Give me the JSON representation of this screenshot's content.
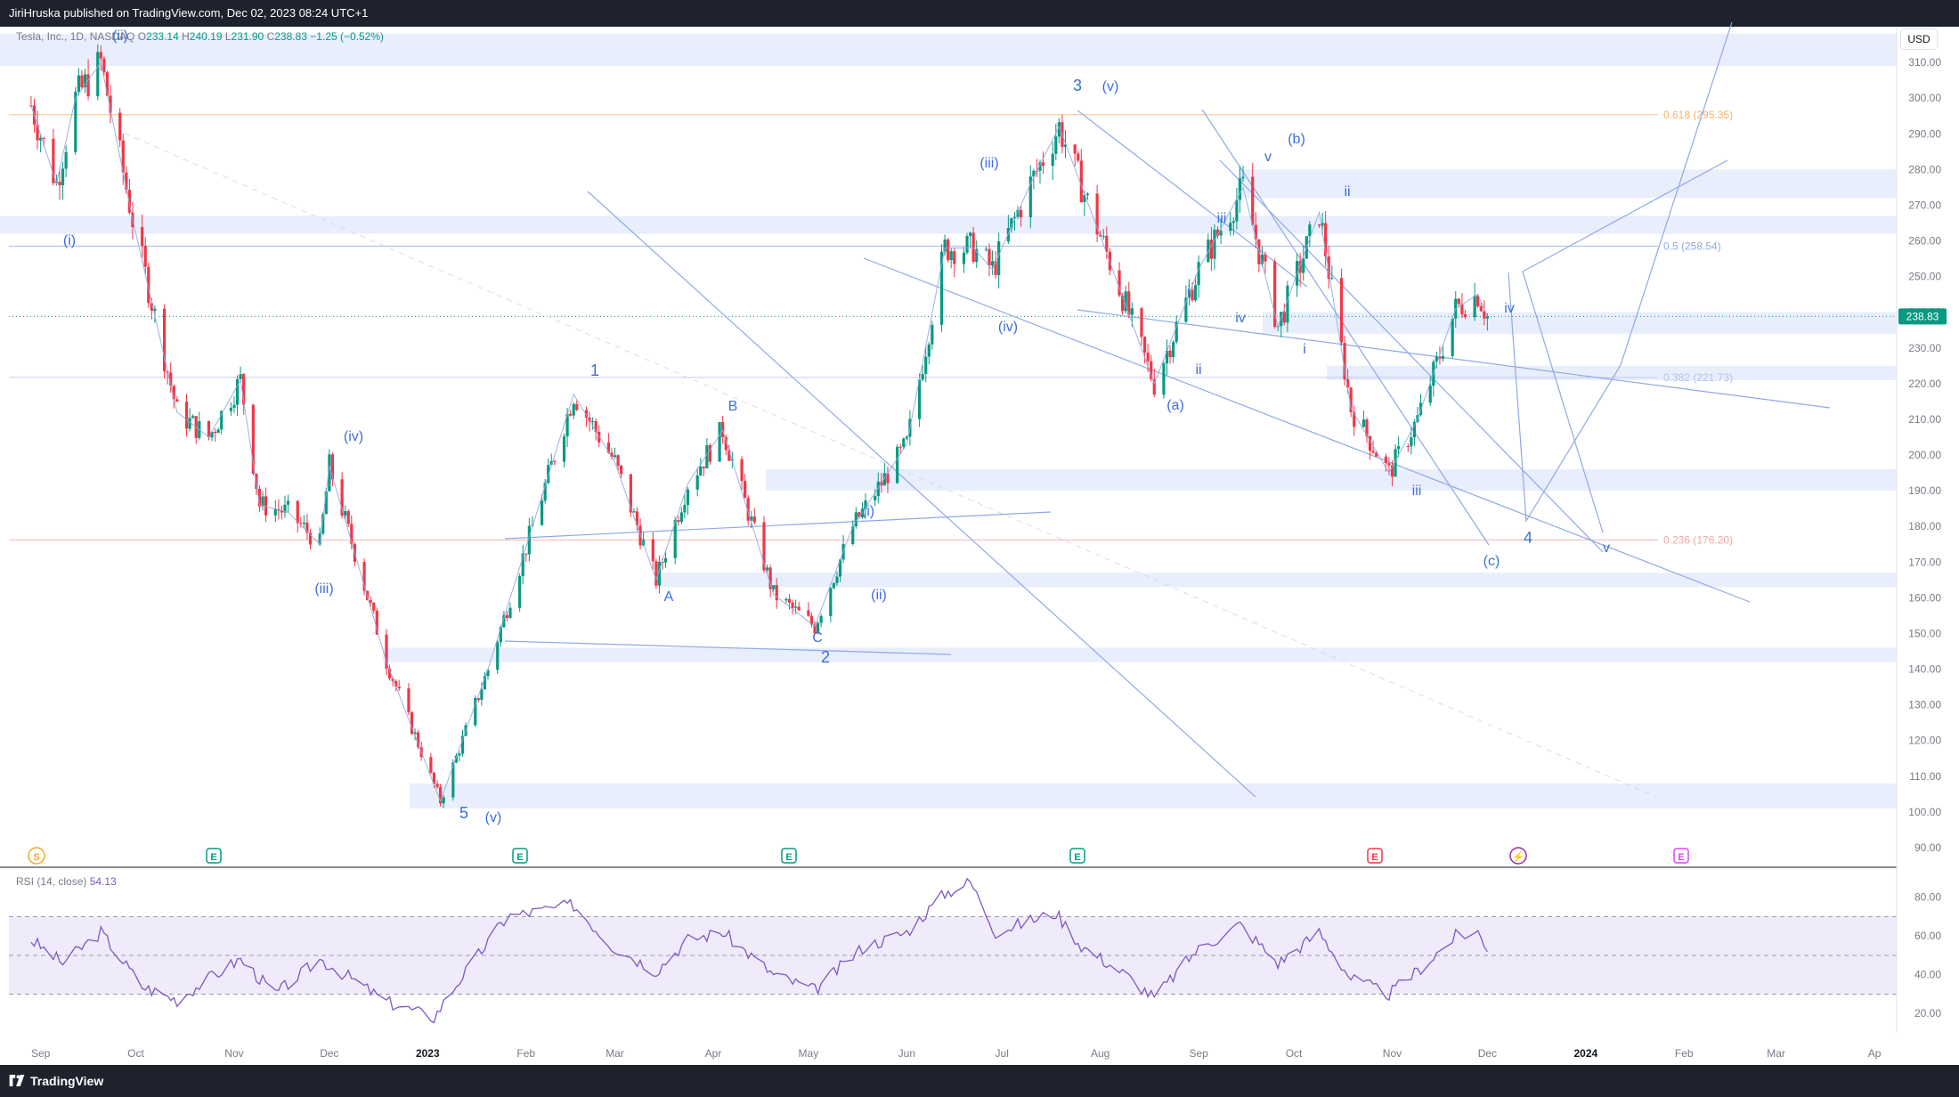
{
  "header": {
    "published": "JiriHruska published on TradingView.com, Dec 02, 2023 08:24 UTC+1"
  },
  "legend": {
    "symbol": "Tesla, Inc., 1D, NASDAQ",
    "open_label": "O",
    "open": "233.14",
    "high_label": "H",
    "high": "240.19",
    "low_label": "L",
    "low": "231.90",
    "close_label": "C",
    "close": "238.83",
    "change": "−1.25 (−0.52%)"
  },
  "currency_button": "USD",
  "rsi_legend": {
    "label": "RSI (14, close)",
    "value": "54.13"
  },
  "footer": {
    "brand": "TradingView"
  },
  "colors": {
    "up": "#089981",
    "down": "#f23645",
    "wave": "#3d6fd6",
    "trend": "#8fa9e6",
    "zone": "#e8eefc",
    "fib_618": "#f7b267",
    "fib_5": "#8fa9e6",
    "fib_382": "#b4c2e8",
    "fib_236": "#f4a3a3",
    "rsi": "#7e57c2",
    "rsi_band": "#f0ebfa"
  },
  "chart_data": {
    "type": "candlestick",
    "symbol": "Tesla, Inc.",
    "interval": "1D",
    "ylim": [
      85,
      320
    ],
    "y_ticks": [
      "90.00",
      "100.00",
      "110.00",
      "120.00",
      "130.00",
      "140.00",
      "150.00",
      "160.00",
      "170.00",
      "180.00",
      "190.00",
      "200.00",
      "210.00",
      "220.00",
      "230.00",
      "240.00",
      "250.00",
      "260.00",
      "270.00",
      "280.00",
      "290.00",
      "300.00",
      "310.00"
    ],
    "x_ticks": [
      "Sep",
      "Oct",
      "Nov",
      "Dec",
      "2023",
      "Feb",
      "Mar",
      "Apr",
      "May",
      "Jun",
      "Jul",
      "Aug",
      "Sep",
      "Oct",
      "Nov",
      "Dec",
      "2024",
      "Feb",
      "Mar",
      "Ap"
    ],
    "last_price": "238.83",
    "fib_levels": [
      {
        "label": "0.618 (295.35)",
        "value": 295.35
      },
      {
        "label": "0.5 (258.54)",
        "value": 258.54
      },
      {
        "label": "0.382 (221.73)",
        "value": 221.73
      },
      {
        "label": "0.236 (176.20)",
        "value": 176.2
      }
    ],
    "zones": [
      {
        "from": 309,
        "to": 318
      },
      {
        "from": 272,
        "to": 280
      },
      {
        "from": 262,
        "to": 267
      },
      {
        "from": 234,
        "to": 240
      },
      {
        "from": 221,
        "to": 225
      },
      {
        "from": 190,
        "to": 196
      },
      {
        "from": 163,
        "to": 167
      },
      {
        "from": 142,
        "to": 146
      },
      {
        "from": 101,
        "to": 108
      }
    ],
    "price_path": [
      [
        "2022-08-29",
        298
      ],
      [
        "2022-09-06",
        276
      ],
      [
        "2022-09-12",
        300
      ],
      [
        "2022-09-20",
        310
      ],
      [
        "2022-09-30",
        266
      ],
      [
        "2022-10-14",
        212
      ],
      [
        "2022-10-24",
        205
      ],
      [
        "2022-11-03",
        221
      ],
      [
        "2022-11-09",
        186
      ],
      [
        "2022-11-18",
        184
      ],
      [
        "2022-11-28",
        175
      ],
      [
        "2022-12-01",
        197
      ],
      [
        "2022-12-19",
        142
      ],
      [
        "2023-01-05",
        103
      ],
      [
        "2023-01-20",
        140
      ],
      [
        "2023-02-16",
        217
      ],
      [
        "2023-03-01",
        198
      ],
      [
        "2023-03-14",
        165
      ],
      [
        "2023-03-24",
        192
      ],
      [
        "2023-04-04",
        207
      ],
      [
        "2023-04-20",
        161
      ],
      [
        "2023-05-03",
        152
      ],
      [
        "2023-05-15",
        180
      ],
      [
        "2023-06-01",
        203
      ],
      [
        "2023-06-13",
        258
      ],
      [
        "2023-06-22",
        258
      ],
      [
        "2023-06-28",
        252
      ],
      [
        "2023-07-10",
        276
      ],
      [
        "2023-07-19",
        292
      ],
      [
        "2023-08-02",
        259
      ],
      [
        "2023-08-18",
        220
      ],
      [
        "2023-09-01",
        252
      ],
      [
        "2023-09-15",
        275
      ],
      [
        "2023-09-26",
        236
      ],
      [
        "2023-10-09",
        268
      ],
      [
        "2023-10-19",
        213
      ],
      [
        "2023-10-31",
        195
      ],
      [
        "2023-11-09",
        210
      ],
      [
        "2023-11-21",
        241
      ],
      [
        "2023-11-28",
        245
      ],
      [
        "2023-12-01",
        238.83
      ]
    ],
    "wave_labels": [
      "(ii)",
      "(i)",
      "(iv)",
      "(iii)",
      "5",
      "(v)",
      "1",
      "A",
      "B",
      "C",
      "2",
      "(i)",
      "(ii)",
      "(iii)",
      "(iv)",
      "3",
      "(v)",
      "(a)",
      "i",
      "ii",
      "iii",
      "iv",
      "v",
      "(b)",
      "i",
      "ii",
      "iii",
      "iv",
      "4",
      "(c)",
      "v"
    ],
    "rsi": {
      "label": "RSI (14, close)",
      "value": 54.13,
      "ylim": [
        10,
        95
      ],
      "y_ticks": [
        "20.00",
        "40.00",
        "60.00",
        "80.00"
      ],
      "bands": [
        30,
        50,
        70
      ],
      "path": [
        [
          "2022-08-29",
          58
        ],
        [
          "2022-09-08",
          46
        ],
        [
          "2022-09-20",
          62
        ],
        [
          "2022-10-03",
          34
        ],
        [
          "2022-10-14",
          27
        ],
        [
          "2022-10-24",
          38
        ],
        [
          "2022-11-03",
          48
        ],
        [
          "2022-11-14",
          30
        ],
        [
          "2022-11-28",
          48
        ],
        [
          "2022-12-08",
          38
        ],
        [
          "2022-12-19",
          26
        ],
        [
          "2023-01-03",
          18
        ],
        [
          "2023-01-10",
          35
        ],
        [
          "2023-01-26",
          70
        ],
        [
          "2023-02-16",
          76
        ],
        [
          "2023-02-28",
          55
        ],
        [
          "2023-03-14",
          42
        ],
        [
          "2023-03-24",
          58
        ],
        [
          "2023-04-04",
          62
        ],
        [
          "2023-04-20",
          40
        ],
        [
          "2023-05-03",
          32
        ],
        [
          "2023-05-18",
          54
        ],
        [
          "2023-06-01",
          62
        ],
        [
          "2023-06-13",
          82
        ],
        [
          "2023-06-21",
          88
        ],
        [
          "2023-06-29",
          62
        ],
        [
          "2023-07-10",
          68
        ],
        [
          "2023-07-18",
          72
        ],
        [
          "2023-07-26",
          55
        ],
        [
          "2023-08-09",
          40
        ],
        [
          "2023-08-18",
          28
        ],
        [
          "2023-08-31",
          52
        ],
        [
          "2023-09-14",
          66
        ],
        [
          "2023-09-26",
          46
        ],
        [
          "2023-10-09",
          62
        ],
        [
          "2023-10-19",
          38
        ],
        [
          "2023-10-31",
          30
        ],
        [
          "2023-11-09",
          42
        ],
        [
          "2023-11-21",
          60
        ],
        [
          "2023-11-28",
          62
        ],
        [
          "2023-12-01",
          54.13
        ]
      ]
    }
  }
}
